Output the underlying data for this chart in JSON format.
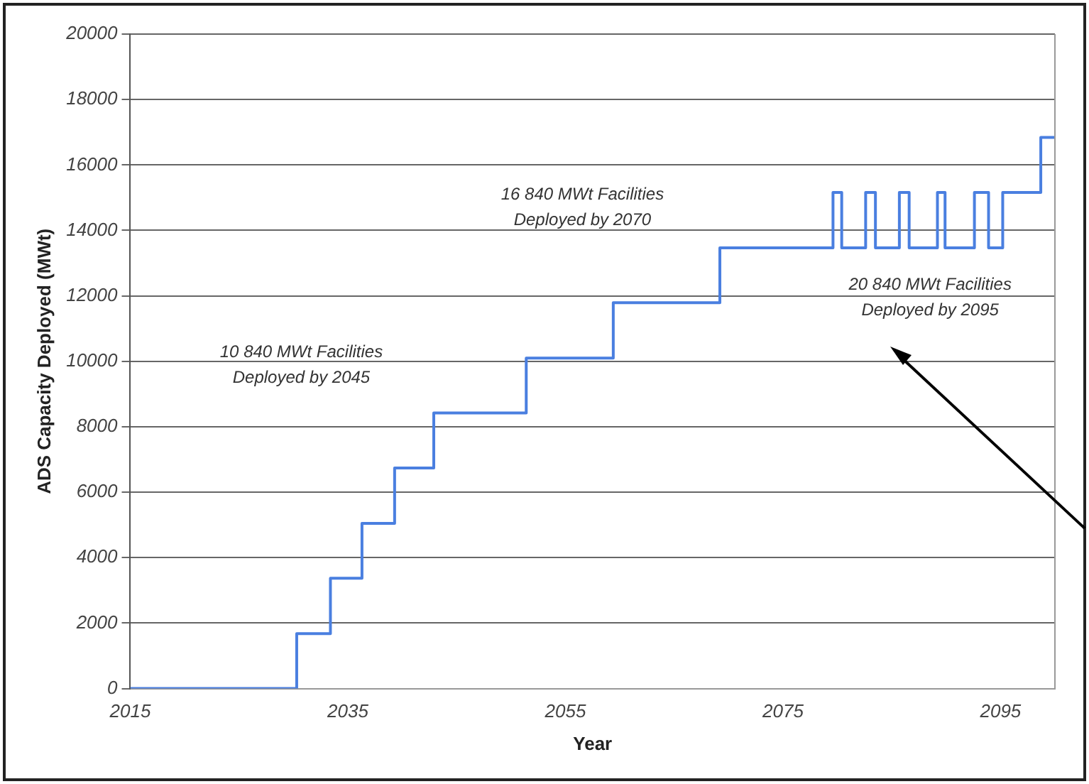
{
  "chart_data": {
    "type": "step",
    "xlabel": "Year",
    "ylabel": "ADS Capacity Deployed (MWt)",
    "x": [
      2015,
      2030.3,
      2033.4,
      2036.3,
      2039.3,
      2042.9,
      2051.4,
      2059.4,
      2069.2,
      2079.6,
      2080.4,
      2082.6,
      2083.5,
      2085.7,
      2086.6,
      2089.2,
      2089.9,
      2092.6,
      2093.9,
      2095.2,
      2098.7,
      2100
    ],
    "series": [
      {
        "color": "#4a7fe0",
        "values": [
          0,
          1680,
          3370,
          5050,
          6740,
          8420,
          10100,
          11790,
          13470,
          15160,
          13470,
          15160,
          13470,
          15160,
          13470,
          15160,
          13470,
          15160,
          13470,
          15160,
          16840,
          16840
        ]
      }
    ],
    "xlim": [
      2015,
      2100
    ],
    "xticks": [
      2015,
      2035,
      2055,
      2075,
      2095
    ],
    "ylim": [
      0,
      20000
    ],
    "yticks": [
      0,
      2000,
      4000,
      6000,
      8000,
      10000,
      12000,
      14000,
      16000,
      18000,
      20000
    ],
    "grid": "y",
    "legend": false,
    "marker": "none",
    "line_style": "solid",
    "annotations": [
      "10 840 MWt Facilities\nDeployed by 2045",
      "16 840 MWt Facilities\nDeployed by 2070",
      "20 840 MWt Facilities\nDeployed by 2095"
    ]
  }
}
